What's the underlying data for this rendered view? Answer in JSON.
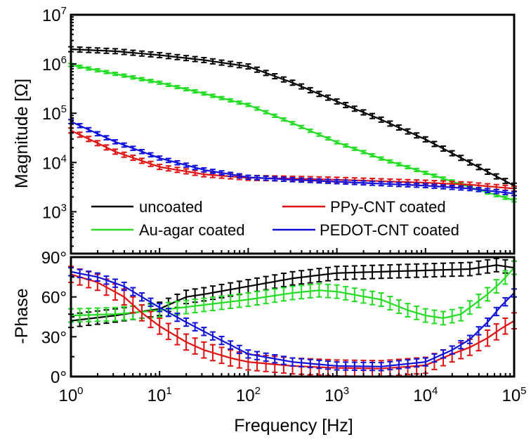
{
  "chart_data": [
    {
      "type": "line",
      "panel": "magnitude",
      "ylabel": "Magnitude [Ω]",
      "yscale": "log",
      "ylim_log10": [
        2.15,
        7
      ],
      "xscale": "log",
      "xlim_log10": [
        0,
        5
      ],
      "y_tick_exponents": [
        "3",
        "4",
        "5",
        "6",
        "7"
      ],
      "legend": {
        "placement": "bottom-inside",
        "entries": [
          "uncoated",
          "PPy-CNT coated",
          "Au-agar coated",
          "PEDOT-CNT coated"
        ]
      },
      "series": [
        {
          "name": "uncoated",
          "color": "#000000",
          "err_log10": 0.05,
          "log10_x": [
            0,
            0.5,
            1,
            1.5,
            2,
            2.5,
            3,
            3.5,
            4,
            4.5,
            5
          ],
          "log10_y": [
            6.3,
            6.26,
            6.18,
            6.08,
            5.95,
            5.62,
            5.24,
            4.87,
            4.47,
            4.0,
            3.53
          ]
        },
        {
          "name": "Au-agar coated",
          "color": "#22dd22",
          "err_log10": 0.03,
          "log10_x": [
            0,
            0.5,
            1,
            1.5,
            2,
            2.5,
            3,
            3.5,
            4,
            4.5,
            5
          ],
          "log10_y": [
            5.98,
            5.8,
            5.62,
            5.4,
            5.17,
            4.8,
            4.41,
            4.08,
            3.79,
            3.5,
            3.23
          ]
        },
        {
          "name": "PPy-CNT coated",
          "color": "#e01010",
          "err_log10": 0.05,
          "log10_x": [
            0,
            0.5,
            1,
            1.5,
            2,
            2.5,
            3,
            3.5,
            4,
            4.5,
            5
          ],
          "log10_y": [
            4.65,
            4.22,
            3.91,
            3.76,
            3.69,
            3.67,
            3.65,
            3.62,
            3.59,
            3.55,
            3.47
          ]
        },
        {
          "name": "PEDOT-CNT coated",
          "color": "#1010dd",
          "err_log10": 0.04,
          "log10_x": [
            0,
            0.5,
            1,
            1.5,
            2,
            2.5,
            3,
            3.5,
            4,
            4.5,
            5
          ],
          "log10_y": [
            4.83,
            4.42,
            4.09,
            3.85,
            3.7,
            3.65,
            3.61,
            3.57,
            3.53,
            3.47,
            3.37
          ]
        }
      ]
    },
    {
      "type": "line",
      "panel": "phase",
      "ylabel": "-Phase",
      "xlabel": "Frequency [Hz]",
      "ylim": [
        0,
        90
      ],
      "y_ticks": [
        "0°",
        "30°",
        "60°",
        "90°"
      ],
      "xscale": "log",
      "xlim_log10": [
        0,
        5
      ],
      "x_tick_exponents": [
        "0",
        "1",
        "2",
        "3",
        "4",
        "5"
      ],
      "series": [
        {
          "name": "uncoated",
          "color": "#000000",
          "err_deg": 5,
          "log10_x": [
            0,
            0.5,
            1,
            1.3,
            1.5,
            2,
            2.5,
            3,
            3.5,
            4,
            4.5,
            4.8,
            5
          ],
          "y": [
            42,
            46,
            51,
            60,
            62,
            68,
            74,
            78,
            79,
            80,
            81,
            84,
            82
          ]
        },
        {
          "name": "Au-agar coated",
          "color": "#22dd22",
          "err_deg": 5,
          "log10_x": [
            0,
            0.5,
            1,
            1.5,
            2,
            2.5,
            2.8,
            3,
            3.5,
            3.8,
            4,
            4.2,
            4.4,
            4.5,
            4.7,
            4.85,
            5
          ],
          "y": [
            46,
            47,
            50,
            54,
            58,
            63,
            65,
            64,
            58,
            50,
            46,
            44,
            47,
            52,
            62,
            71,
            82
          ]
        },
        {
          "name": "PPy-CNT coated",
          "color": "#e01010",
          "err_deg": 6,
          "log10_x": [
            0,
            0.3,
            0.6,
            0.8,
            1,
            1.3,
            1.5,
            1.8,
            2,
            2.5,
            3,
            3.5,
            4,
            4.3,
            4.5,
            4.7,
            4.85,
            5
          ],
          "y": [
            77,
            71,
            60,
            48,
            38,
            26,
            20,
            14,
            11,
            8,
            6.5,
            6,
            8.5,
            17,
            22,
            29,
            36,
            42
          ]
        },
        {
          "name": "PEDOT-CNT coated",
          "color": "#1010dd",
          "err_deg": 3,
          "log10_x": [
            0,
            0.3,
            0.6,
            1,
            1.3,
            1.5,
            2,
            2.5,
            3,
            3.5,
            4,
            4.3,
            4.5,
            4.7,
            4.85,
            5
          ],
          "y": [
            79,
            75,
            68,
            52,
            41,
            34,
            17,
            11,
            8,
            7.5,
            11,
            20,
            28,
            41,
            53,
            63
          ]
        }
      ]
    }
  ]
}
